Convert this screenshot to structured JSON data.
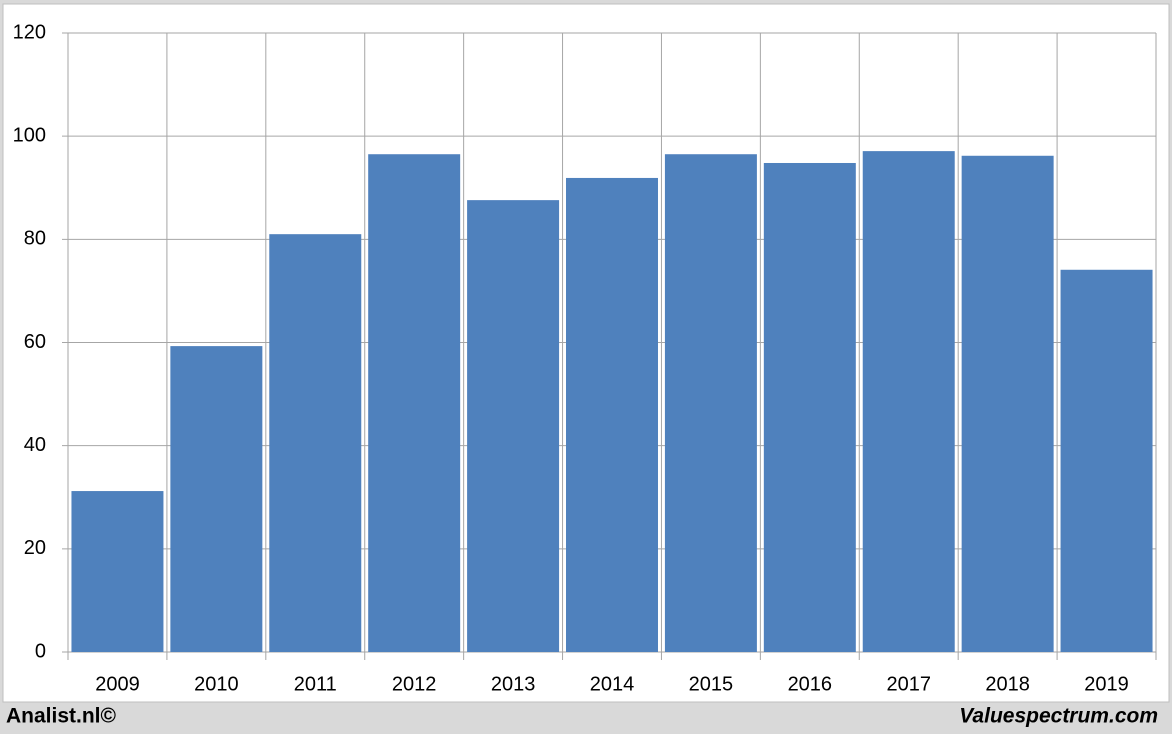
{
  "chart_data": {
    "type": "bar",
    "categories": [
      "2009",
      "2010",
      "2011",
      "2012",
      "2013",
      "2014",
      "2015",
      "2016",
      "2017",
      "2018",
      "2019"
    ],
    "values": [
      31.2,
      59.3,
      81.0,
      96.5,
      87.6,
      91.9,
      96.5,
      94.8,
      97.1,
      96.2,
      74.1
    ],
    "color": "#4f81bd",
    "ylim": [
      0,
      120
    ],
    "yticks": [
      0,
      20,
      40,
      60,
      80,
      100,
      120
    ],
    "grid": true,
    "footer_left": "Analist.nl©",
    "footer_right": "Valuespectrum.com"
  }
}
